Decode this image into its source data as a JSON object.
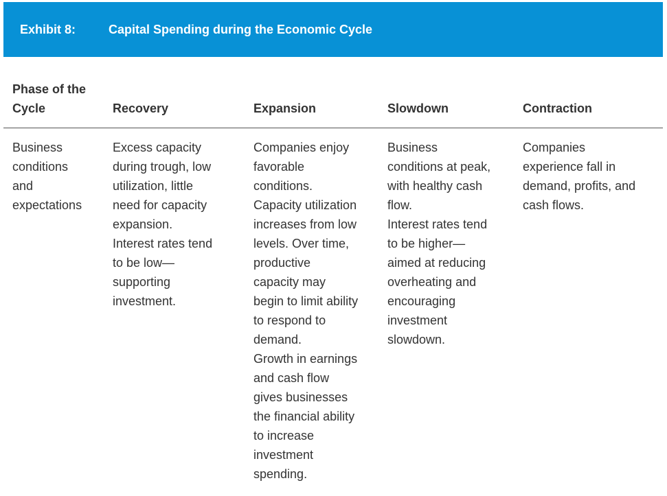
{
  "exhibit": {
    "label": "Exhibit 8:",
    "title": "Capital Spending during the Economic Cycle"
  },
  "table": {
    "headers": [
      [
        "Phase of the",
        "Cycle"
      ],
      [
        "Recovery"
      ],
      [
        "Expansion"
      ],
      [
        "Slowdown"
      ],
      [
        "Contraction"
      ]
    ],
    "rows": [
      {
        "cells": [
          [
            "Business",
            "conditions",
            "and",
            "expectations"
          ],
          [
            "Excess capacity",
            "during trough, low",
            "utilization, little",
            "need for capacity",
            "expansion.",
            "Interest rates tend",
            "to be low—",
            "supporting",
            "investment."
          ],
          [
            "Companies enjoy",
            "favorable",
            "conditions.",
            "Capacity utilization",
            "increases from low",
            "levels. Over time,",
            "productive",
            "capacity may",
            "begin to limit ability",
            "to respond to",
            "demand.",
            "Growth in earnings",
            "and cash flow",
            "gives businesses",
            "the financial ability",
            "to increase",
            "investment",
            "spending."
          ],
          [
            "Business",
            "conditions at peak,",
            "with healthy cash",
            "flow.",
            "Interest rates tend",
            "to be higher—",
            "aimed at reducing",
            "overheating and",
            "encouraging",
            "investment",
            "slowdown."
          ],
          [
            "Companies",
            "experience fall in",
            "demand, profits, and",
            "cash flows."
          ]
        ]
      }
    ]
  },
  "colors": {
    "banner": "#0891d6",
    "text": "#333333",
    "rule": "#555555"
  }
}
